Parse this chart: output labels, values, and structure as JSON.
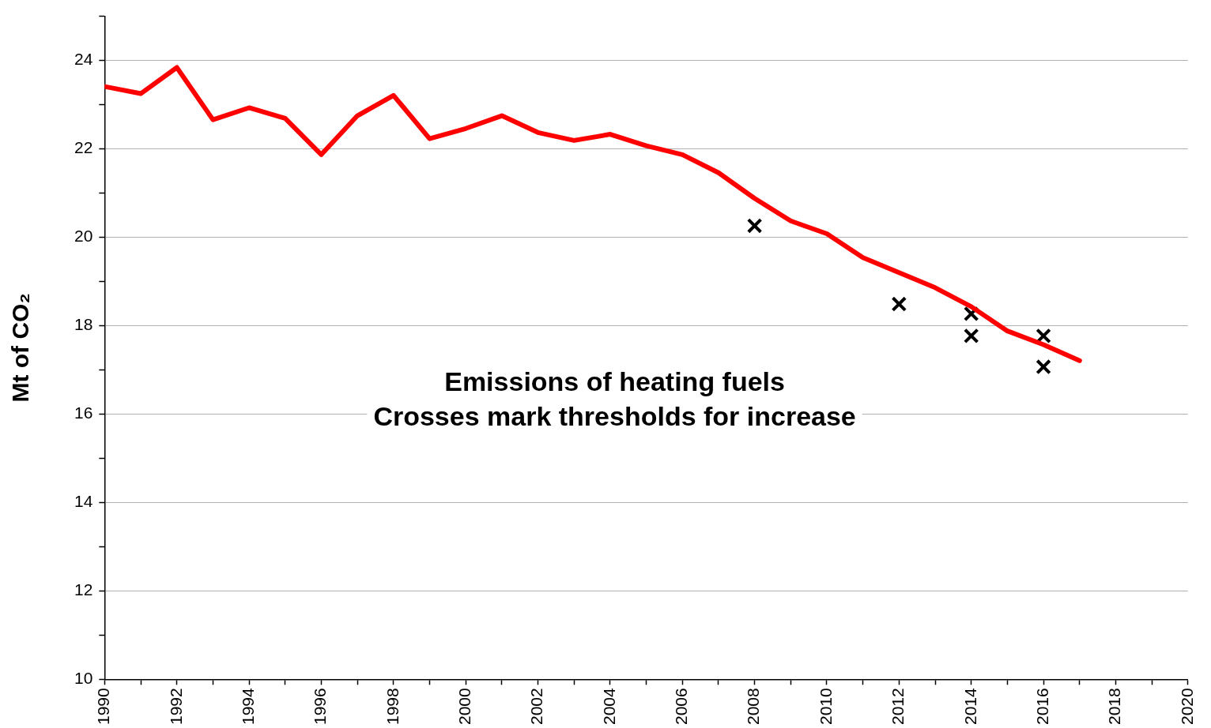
{
  "chart_data": {
    "type": "line",
    "ylabel": "Mt of CO₂",
    "annotations": [
      "Emissions of heating fuels\nCrosses mark thresholds for increase"
    ],
    "xlim": [
      1990,
      2020
    ],
    "xticks": [
      1990,
      {
        "value": 1991,
        "label": null
      },
      1992,
      {
        "value": 1993,
        "label": null
      },
      1994,
      {
        "value": 1995,
        "label": null
      },
      1996,
      {
        "value": 1997,
        "label": null
      },
      1998,
      {
        "value": 1999,
        "label": null
      },
      2000,
      {
        "value": 2001,
        "label": null
      },
      2002,
      {
        "value": 2003,
        "label": null
      },
      2004,
      {
        "value": 2005,
        "label": null
      },
      2006,
      {
        "value": 2007,
        "label": null
      },
      2008,
      {
        "value": 2009,
        "label": null
      },
      2010,
      {
        "value": 2011,
        "label": null
      },
      2012,
      {
        "value": 2013,
        "label": null
      },
      2014,
      {
        "value": 2015,
        "label": null
      },
      2016,
      {
        "value": 2017,
        "label": null
      },
      2018,
      {
        "value": 2019,
        "label": null
      },
      2020
    ],
    "ylim": [
      10,
      25
    ],
    "yticks": [
      10,
      {
        "value": 11,
        "label": null
      },
      12,
      {
        "value": 13,
        "label": null
      },
      14,
      {
        "value": 15,
        "label": null
      },
      16,
      {
        "value": 17,
        "label": null
      },
      18,
      {
        "value": 19,
        "label": null
      },
      20,
      {
        "value": 21,
        "label": null
      },
      22,
      {
        "value": 23,
        "label": null
      },
      24,
      {
        "value": 25,
        "label": null
      }
    ],
    "grid": "y",
    "legend": false,
    "series": [
      {
        "type": "line",
        "color": "#ff0000",
        "marker": "none",
        "line_style": "solid",
        "x": [
          1990,
          1991,
          1992,
          1993,
          1994,
          1995,
          1996,
          1997,
          1998,
          1999,
          2000,
          2001,
          2002,
          2003,
          2004,
          2005,
          2006,
          2007,
          2008,
          2009,
          2010,
          2011,
          2012,
          2013,
          2014,
          2015,
          2016,
          2017
        ],
        "values": [
          23.41,
          23.25,
          23.84,
          22.66,
          22.93,
          22.69,
          21.87,
          22.75,
          23.21,
          22.23,
          22.46,
          22.75,
          22.37,
          22.19,
          22.33,
          22.07,
          21.87,
          21.46,
          20.88,
          20.37,
          20.08,
          19.54,
          19.2,
          18.86,
          18.43,
          17.88,
          17.57,
          17.21
        ]
      },
      {
        "type": "scatter",
        "color": "#000000",
        "marker": "cross",
        "x": [
          2008,
          2012,
          2014,
          2014,
          2016,
          2016
        ],
        "values": [
          20.26,
          18.49,
          18.27,
          17.77,
          17.77,
          17.07
        ]
      }
    ]
  }
}
